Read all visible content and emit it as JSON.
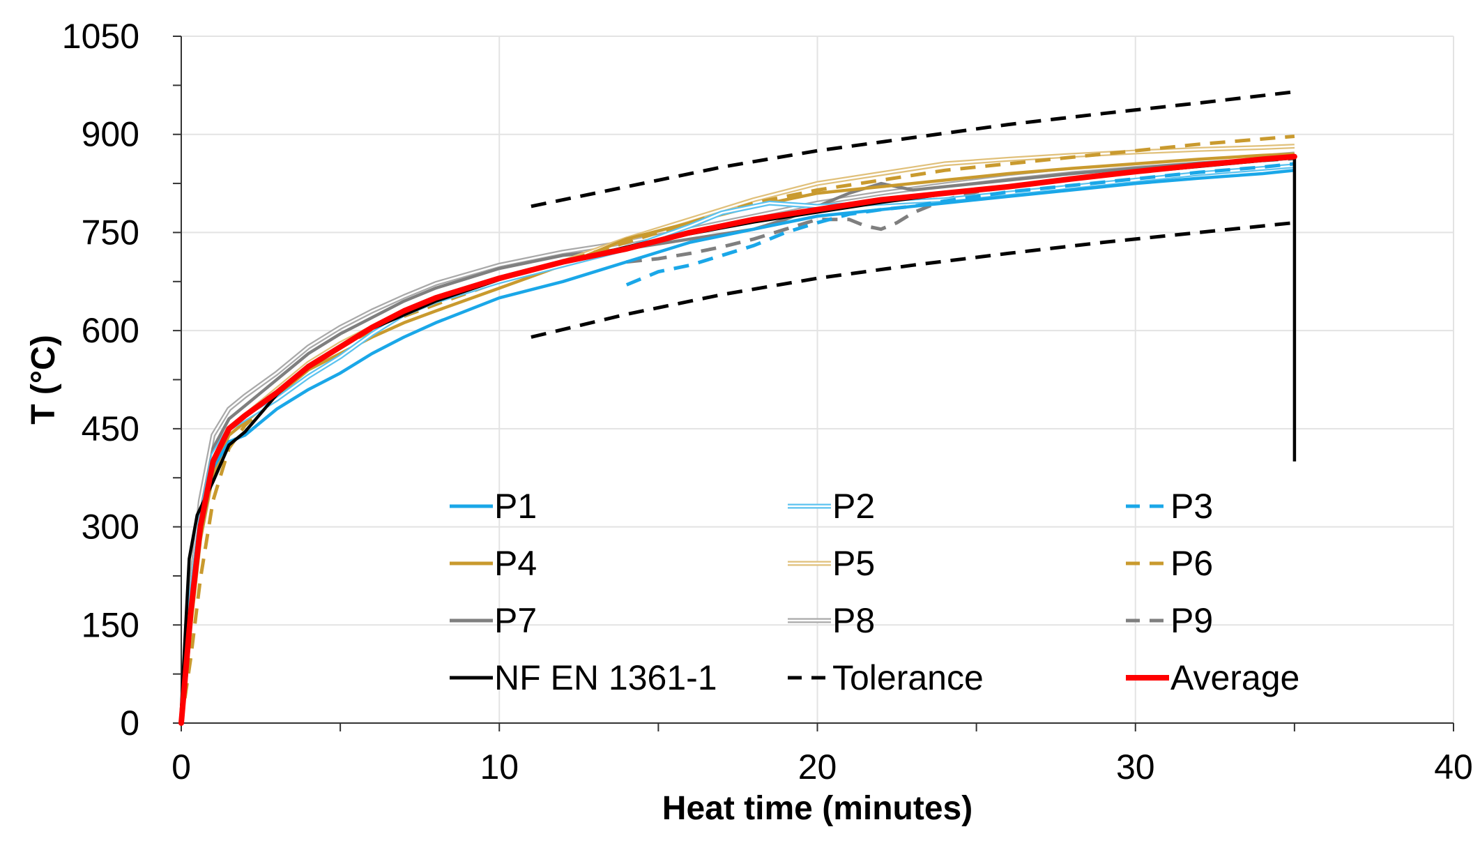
{
  "chart_data": {
    "type": "line",
    "title": "",
    "xlabel": "Heat time (minutes)",
    "ylabel": "T (°C)",
    "xlim": [
      0,
      40
    ],
    "ylim": [
      0,
      1050
    ],
    "xticks": [
      "0",
      "10",
      "20",
      "30",
      "40"
    ],
    "yticks": [
      "0",
      "150",
      "300",
      "450",
      "600",
      "750",
      "900",
      "1050"
    ],
    "grid": true,
    "legend_position": "lower-right",
    "series": [
      {
        "name": "P1",
        "color": "#1aa7e8",
        "style": "solid",
        "x": [
          0,
          0.3,
          0.6,
          1,
          1.5,
          2,
          3,
          4,
          5,
          6,
          7,
          8,
          10,
          12,
          14,
          16,
          18,
          20,
          22,
          24,
          26,
          28,
          30,
          32,
          34,
          35
        ],
        "y": [
          0,
          170,
          290,
          390,
          430,
          440,
          480,
          510,
          535,
          565,
          590,
          612,
          650,
          675,
          705,
          735,
          755,
          775,
          785,
          795,
          805,
          815,
          825,
          833,
          840,
          845
        ]
      },
      {
        "name": "P2",
        "color": "#5bc2ef",
        "style": "double",
        "x": [
          0,
          0.3,
          0.6,
          1,
          1.5,
          2,
          3,
          4,
          5,
          6,
          7,
          8,
          10,
          12,
          14,
          16,
          17,
          18,
          18.5,
          20,
          22,
          24,
          26,
          28,
          30,
          32,
          34,
          35
        ],
        "y": [
          0,
          190,
          310,
          410,
          450,
          465,
          495,
          530,
          560,
          595,
          625,
          645,
          675,
          700,
          725,
          760,
          780,
          790,
          795,
          790,
          795,
          800,
          810,
          820,
          830,
          840,
          848,
          852
        ]
      },
      {
        "name": "P3",
        "color": "#1aa7e8",
        "style": "dashed",
        "x": [
          14,
          14.5,
          15,
          16,
          17,
          18,
          19,
          20,
          21,
          22,
          23,
          24,
          25,
          26,
          28,
          30,
          32,
          34,
          35
        ],
        "y": [
          670,
          680,
          690,
          700,
          715,
          730,
          750,
          765,
          778,
          785,
          790,
          798,
          805,
          812,
          822,
          832,
          842,
          850,
          855
        ]
      },
      {
        "name": "P4",
        "color": "#c99a2e",
        "style": "solid",
        "x": [
          0,
          0.3,
          0.6,
          1,
          1.5,
          2,
          3,
          4,
          5,
          6,
          7,
          8,
          10,
          12,
          14,
          16,
          18,
          20,
          22,
          24,
          26,
          28,
          30,
          32,
          34,
          35
        ],
        "y": [
          0,
          150,
          280,
          380,
          440,
          460,
          500,
          540,
          565,
          590,
          612,
          630,
          665,
          700,
          740,
          765,
          790,
          810,
          820,
          830,
          840,
          848,
          855,
          862,
          868,
          870
        ]
      },
      {
        "name": "P5",
        "color": "#e0c07a",
        "style": "double",
        "x": [
          0,
          0.3,
          0.6,
          1,
          1.5,
          2,
          3,
          4,
          5,
          6,
          7,
          8,
          10,
          12,
          14,
          16,
          18,
          20,
          22,
          24,
          26,
          28,
          30,
          32,
          34,
          35
        ],
        "y": [
          0,
          160,
          290,
          395,
          450,
          470,
          510,
          550,
          580,
          605,
          625,
          645,
          680,
          705,
          740,
          770,
          800,
          825,
          840,
          855,
          862,
          868,
          873,
          877,
          880,
          882
        ]
      },
      {
        "name": "P6",
        "color": "#c99a2e",
        "style": "dashed",
        "x": [
          0,
          0.3,
          0.6,
          1,
          1.5,
          2,
          3,
          4,
          5,
          6,
          7,
          8,
          10,
          12,
          14,
          16,
          18,
          20,
          22,
          24,
          26,
          28,
          30,
          32,
          34,
          35
        ],
        "y": [
          0,
          100,
          220,
          340,
          420,
          455,
          500,
          545,
          575,
          600,
          622,
          640,
          675,
          705,
          735,
          765,
          795,
          815,
          830,
          845,
          855,
          865,
          875,
          885,
          893,
          897
        ]
      },
      {
        "name": "P7",
        "color": "#7f7f7f",
        "style": "solid",
        "x": [
          0,
          0.3,
          0.6,
          1,
          1.5,
          2,
          3,
          4,
          5,
          6,
          7,
          8,
          10,
          12,
          14,
          16,
          18,
          19,
          20,
          21,
          22,
          23,
          24,
          26,
          28,
          30,
          32,
          34,
          35
        ],
        "y": [
          0,
          200,
          320,
          420,
          465,
          485,
          525,
          565,
          595,
          620,
          645,
          665,
          695,
          715,
          725,
          740,
          755,
          770,
          790,
          810,
          825,
          815,
          820,
          830,
          840,
          848,
          856,
          862,
          865
        ]
      },
      {
        "name": "P8",
        "color": "#a9a9a9",
        "style": "double",
        "x": [
          0,
          0.3,
          0.6,
          1,
          1.5,
          2,
          3,
          4,
          5,
          6,
          7,
          8,
          10,
          12,
          14,
          16,
          18,
          20,
          22,
          24,
          26,
          28,
          30,
          32,
          34,
          35
        ],
        "y": [
          0,
          210,
          340,
          440,
          480,
          500,
          535,
          575,
          605,
          630,
          652,
          672,
          700,
          720,
          735,
          755,
          775,
          795,
          810,
          823,
          835,
          845,
          853,
          860,
          866,
          870
        ]
      },
      {
        "name": "P9",
        "color": "#7f7f7f",
        "style": "dashed",
        "x": [
          14,
          15,
          16,
          17,
          18,
          19,
          20,
          21,
          21.5,
          22,
          22.5,
          23,
          24,
          25,
          26,
          28,
          30,
          32,
          34,
          35
        ],
        "y": [
          705,
          710,
          718,
          728,
          740,
          755,
          770,
          770,
          760,
          755,
          765,
          780,
          800,
          812,
          820,
          832,
          843,
          852,
          860,
          863
        ]
      },
      {
        "name": "NF EN 1361-1",
        "color": "#000000",
        "style": "solid",
        "x": [
          0,
          0.25,
          0.5,
          1,
          1.5,
          2,
          3,
          4,
          5,
          6,
          8,
          10,
          12,
          15,
          18,
          20,
          22,
          25,
          28,
          30,
          32,
          34,
          35,
          35,
          35
        ],
        "y": [
          20,
          251,
          318,
          369,
          425,
          445,
          502,
          544,
          576,
          603,
          645,
          678,
          705,
          739,
          766,
          781,
          796,
          815,
          832,
          842,
          851,
          860,
          864,
          864,
          400
        ]
      },
      {
        "name": "Tolerance",
        "color": "#000000",
        "style": "tolerance",
        "x": [
          11,
          14,
          17,
          20,
          23,
          26,
          29,
          32,
          35
        ],
        "y_upper": [
          790,
          820,
          850,
          875,
          895,
          915,
          932,
          948,
          965
        ],
        "y_lower": [
          590,
          625,
          655,
          680,
          700,
          718,
          735,
          750,
          765
        ]
      },
      {
        "name": "Average",
        "color": "#ff0000",
        "style": "thick",
        "x": [
          0,
          0.3,
          0.6,
          1,
          1.5,
          2,
          3,
          4,
          5,
          6,
          7,
          8,
          10,
          12,
          14,
          16,
          18,
          20,
          22,
          24,
          26,
          28,
          30,
          32,
          34,
          35
        ],
        "y": [
          0,
          170,
          300,
          400,
          450,
          470,
          505,
          545,
          575,
          605,
          630,
          650,
          680,
          705,
          725,
          750,
          770,
          785,
          800,
          810,
          820,
          832,
          843,
          853,
          862,
          866
        ]
      }
    ]
  }
}
